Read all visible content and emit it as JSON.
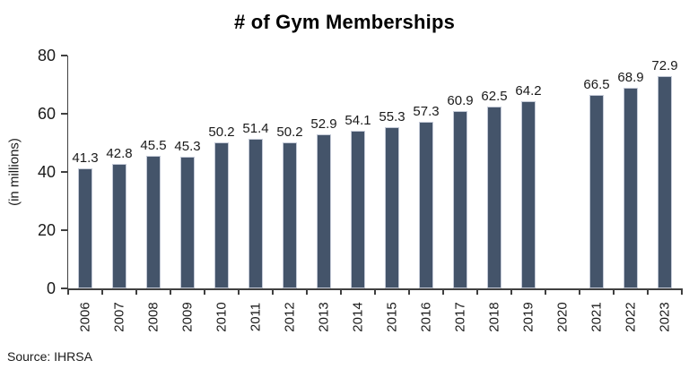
{
  "chart_data": {
    "type": "bar",
    "title": "# of Gym Memberships",
    "ylabel": "(in millions)",
    "xlabel": "",
    "source": "Source: IHRSA",
    "categories": [
      "2006",
      "2007",
      "2008",
      "2009",
      "2010",
      "2011",
      "2012",
      "2013",
      "2014",
      "2015",
      "2016",
      "2017",
      "2018",
      "2019",
      "2020",
      "2021",
      "2022",
      "2023"
    ],
    "values": [
      41.3,
      42.8,
      45.5,
      45.3,
      50.2,
      51.4,
      50.2,
      52.9,
      54.1,
      55.3,
      57.3,
      60.9,
      62.5,
      64.2,
      null,
      66.5,
      68.9,
      72.9
    ],
    "ylim": [
      0,
      80
    ],
    "yticks": [
      0,
      20,
      40,
      60,
      80
    ],
    "grid": false,
    "legend": "none",
    "data_labels": true,
    "bar_color": "#44546A",
    "bar_edge_color": "#C3C9D6",
    "axis_color": "#404040",
    "text_color": "#1A1A1A",
    "note": ""
  }
}
